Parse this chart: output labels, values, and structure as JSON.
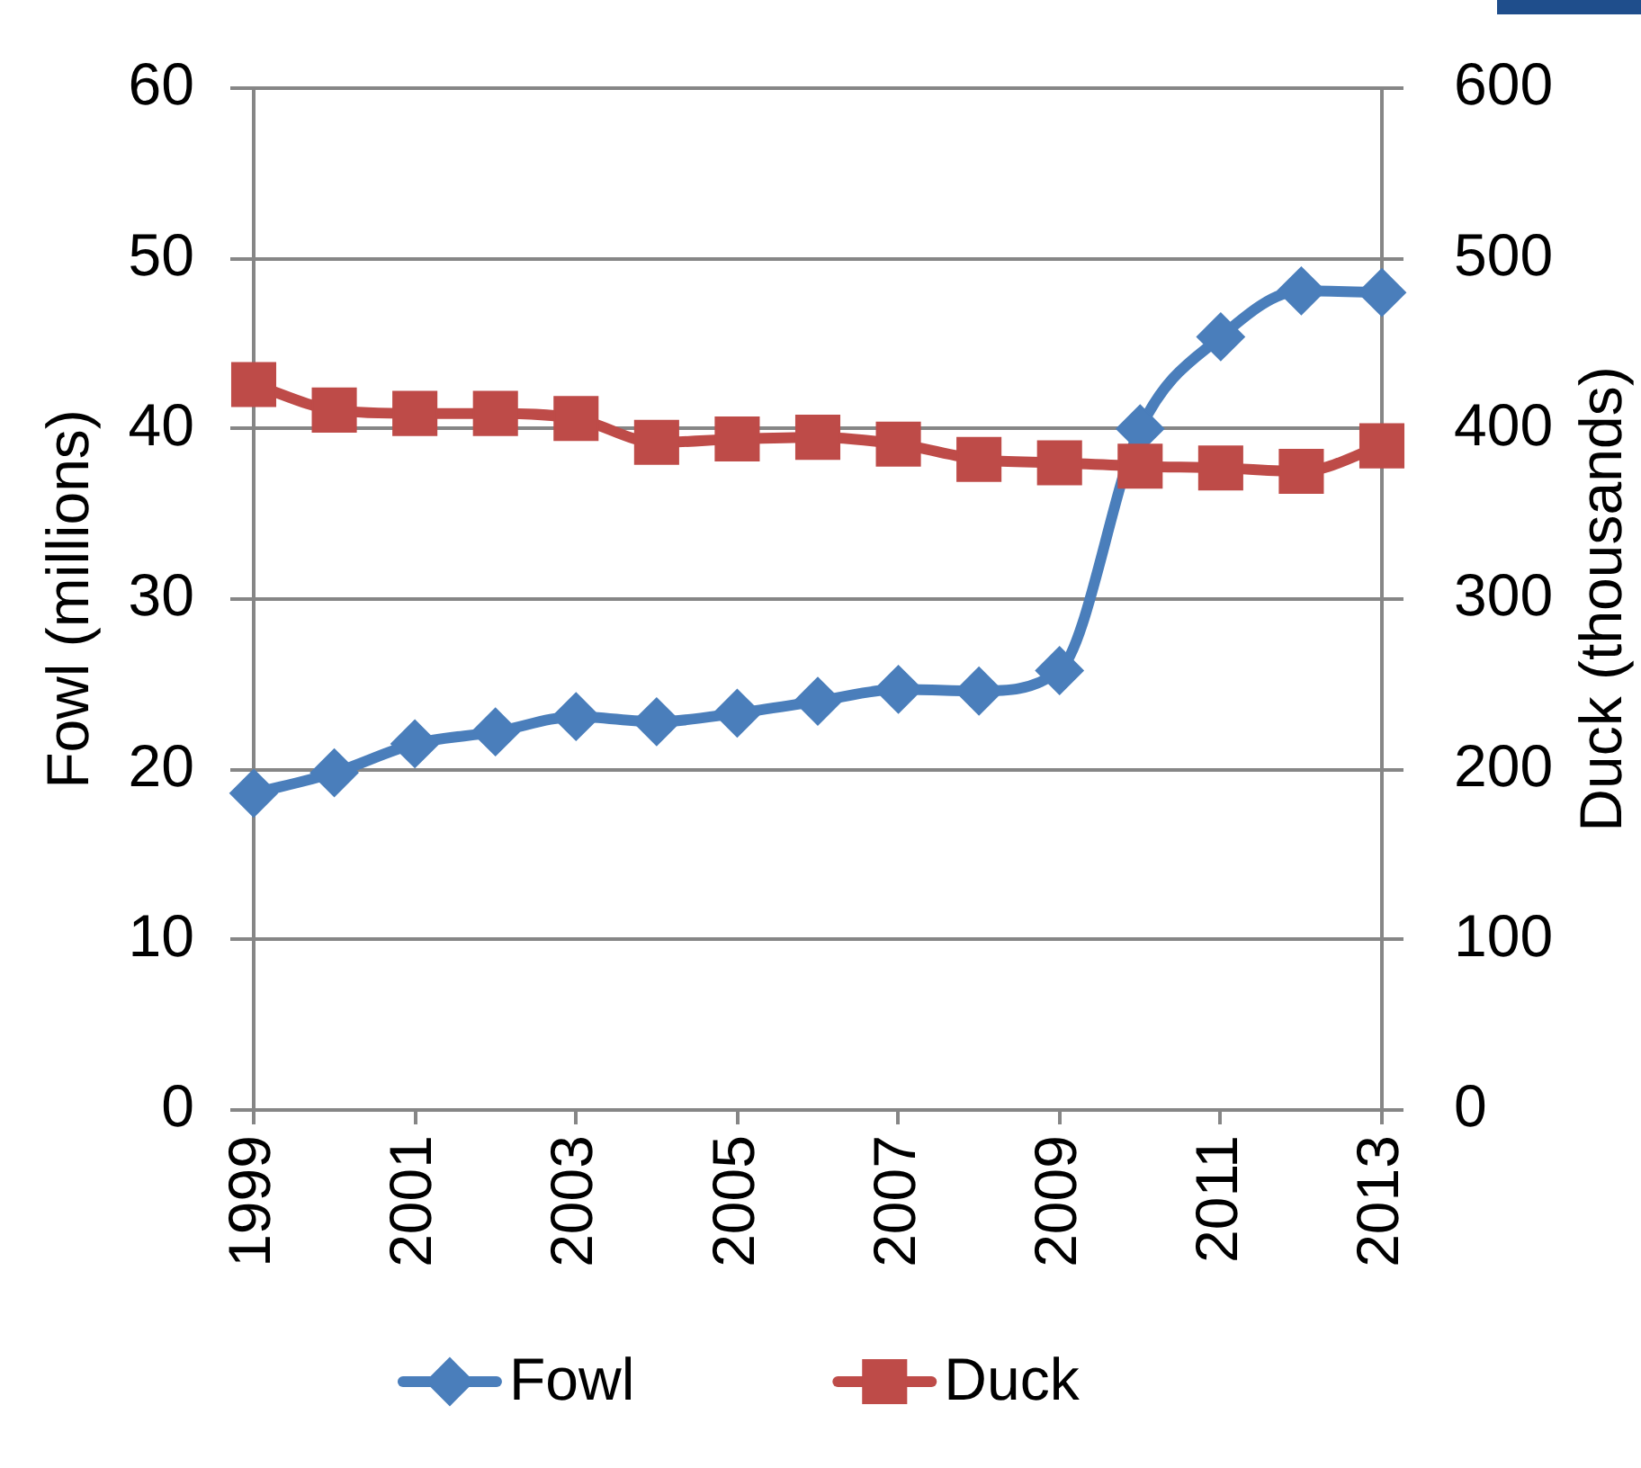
{
  "chart_data": {
    "type": "line",
    "categories": [
      "1999",
      null,
      "2001",
      null,
      "2003",
      null,
      "2005",
      null,
      "2007",
      null,
      "2009",
      null,
      "2011",
      null,
      "2013"
    ],
    "series": [
      {
        "name": "Fowl",
        "color": "#4a7ebb",
        "marker": "diamond",
        "values": [
          18.6,
          19.8,
          21.5,
          22.2,
          23.1,
          22.8,
          23.3,
          24.0,
          24.7,
          24.6,
          25.8,
          40.0,
          45.4,
          48.1,
          48.0
        ]
      },
      {
        "name": "Duck",
        "color": "#be4b48",
        "marker": "square",
        "axis": "y2",
        "values": [
          426,
          411,
          409,
          409,
          406,
          392,
          394,
          395,
          391,
          382,
          380,
          378,
          377,
          375,
          390
        ]
      }
    ],
    "ylabel": "Fowl (millions)",
    "y2label": "Duck (thousands)",
    "ylim": [
      0,
      60
    ],
    "yticks": [
      0,
      10,
      20,
      30,
      40,
      50,
      60
    ],
    "y2lim": [
      0,
      600
    ],
    "y2ticks": [
      0,
      100,
      200,
      300,
      400,
      500,
      600
    ],
    "grid": "y",
    "legend": "bottom",
    "line_style": "solid"
  }
}
